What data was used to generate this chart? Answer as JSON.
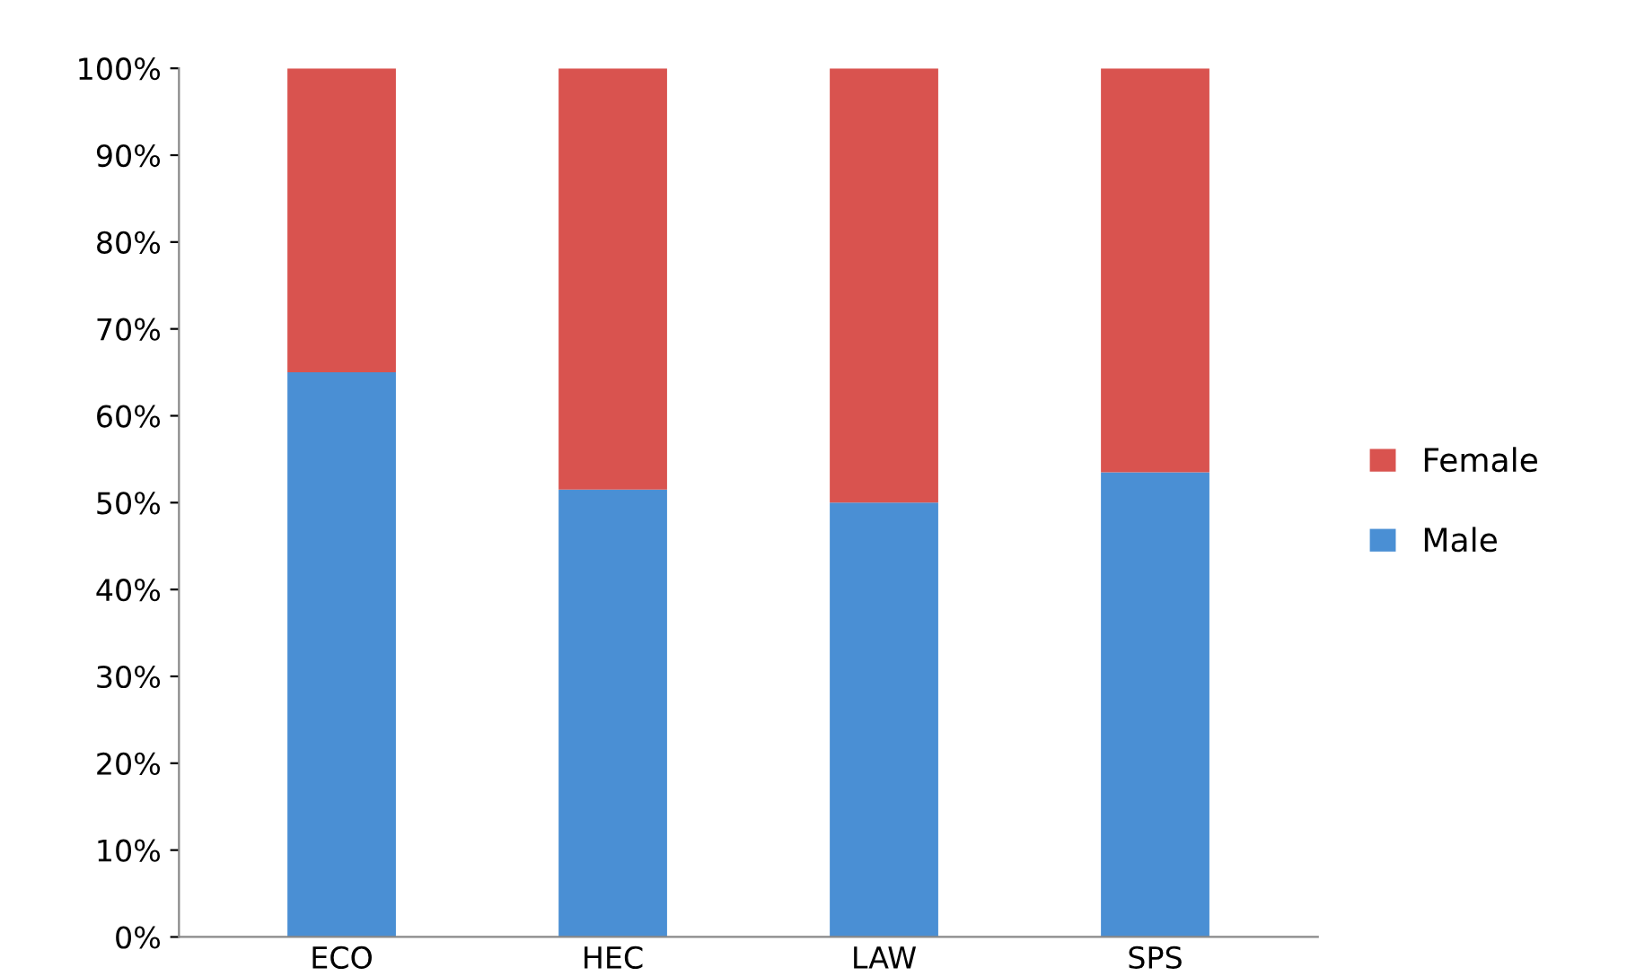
{
  "chart_data": {
    "type": "bar",
    "stacked": true,
    "categories": [
      "ECO",
      "HEC",
      "LAW",
      "SPS"
    ],
    "series": [
      {
        "name": "Male",
        "color": "#4a8fd4",
        "values": [
          65,
          51.5,
          50,
          53.5
        ]
      },
      {
        "name": "Female",
        "color": "#d9534f",
        "values": [
          35,
          48.5,
          50,
          46.5
        ]
      }
    ],
    "ylim": [
      0,
      100
    ],
    "yticks": [
      {
        "value": 0,
        "label": "0%"
      },
      {
        "value": 10,
        "label": "10%"
      },
      {
        "value": 20,
        "label": "20%"
      },
      {
        "value": 30,
        "label": "30%"
      },
      {
        "value": 40,
        "label": "40%"
      },
      {
        "value": 50,
        "label": "50%"
      },
      {
        "value": 60,
        "label": "60%"
      },
      {
        "value": 70,
        "label": "70%"
      },
      {
        "value": 80,
        "label": "80%"
      },
      {
        "value": 90,
        "label": "90%"
      },
      {
        "value": 100,
        "label": "100%"
      }
    ],
    "legend": "right",
    "grid": false
  }
}
